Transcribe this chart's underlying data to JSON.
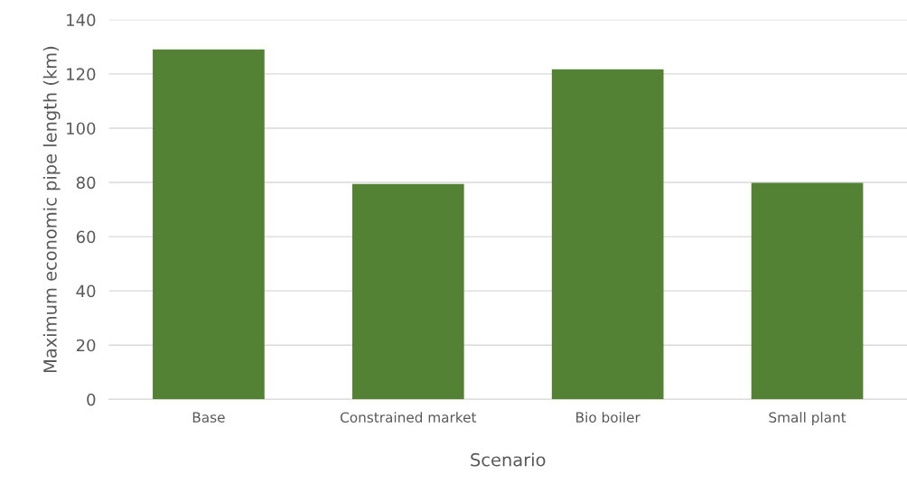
{
  "chart_data": {
    "type": "bar",
    "xlabel": "Scenario",
    "ylabel": "Maximum economic pipe length (km)",
    "categories": [
      "Base",
      "Constrained market",
      "Bio boiler",
      "Small plant"
    ],
    "values": [
      129,
      79.4,
      121.7,
      79.8
    ],
    "color": "#548235",
    "ylim": [
      0,
      140
    ],
    "yticks": [
      0,
      20,
      40,
      60,
      80,
      100,
      120,
      140
    ],
    "grid": "y"
  }
}
